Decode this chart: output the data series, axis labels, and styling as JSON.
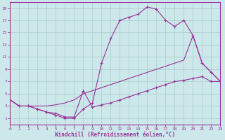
{
  "xlabel": "Windchill (Refroidissement éolien,°C)",
  "bg_color": "#cce8ea",
  "line_color": "#993399",
  "grid_color": "#aacccc",
  "xlim": [
    0,
    23
  ],
  "ylim": [
    0,
    20
  ],
  "xticks": [
    0,
    1,
    2,
    3,
    4,
    5,
    6,
    7,
    8,
    9,
    10,
    11,
    12,
    13,
    14,
    15,
    16,
    17,
    18,
    19,
    20,
    21,
    22,
    23
  ],
  "yticks": [
    1,
    3,
    5,
    7,
    9,
    11,
    13,
    15,
    17,
    19
  ],
  "line_peak_x": [
    0,
    1,
    2,
    3,
    4,
    5,
    6,
    7,
    8,
    9,
    10,
    11,
    12,
    13,
    14,
    15,
    16,
    17,
    18,
    19,
    20,
    21,
    22,
    23
  ],
  "line_peak_y": [
    4,
    3,
    3,
    2.5,
    2,
    1.5,
    1.0,
    1.0,
    2.5,
    3.5,
    10,
    14,
    17,
    17.5,
    18,
    19.2,
    18.8,
    17,
    16,
    17,
    14.5,
    10,
    8.5,
    7
  ],
  "line_mid_x": [
    0,
    1,
    2,
    3,
    4,
    5,
    6,
    7,
    8,
    9,
    10,
    11,
    12,
    13,
    14,
    15,
    16,
    17,
    18,
    19,
    20,
    21,
    22,
    23
  ],
  "line_mid_y": [
    4,
    3,
    3,
    3,
    3,
    3.2,
    3.5,
    4,
    5,
    5.5,
    6,
    6.5,
    7,
    7.5,
    8,
    8.5,
    9,
    9.5,
    10,
    10.5,
    14.5,
    10,
    8.5,
    7
  ],
  "line_flat_x": [
    0,
    1,
    2,
    3,
    4,
    5,
    6,
    7,
    8,
    9,
    10,
    11,
    12,
    13,
    14,
    15,
    16,
    17,
    18,
    19,
    20,
    21,
    22,
    23
  ],
  "line_flat_y": [
    4,
    3,
    3,
    2.5,
    2,
    1.8,
    1.2,
    1.2,
    5.5,
    2.8,
    3.2,
    3.5,
    4,
    4.5,
    5,
    5.5,
    6,
    6.5,
    7,
    7.2,
    7.5,
    7.8,
    7,
    7
  ]
}
